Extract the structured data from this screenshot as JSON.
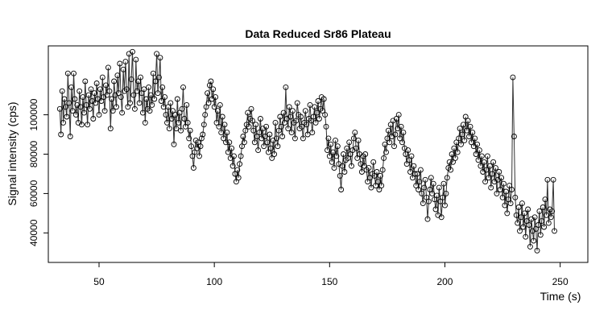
{
  "chart_data": {
    "type": "line",
    "title": "Data Reduced Sr86 Plateau",
    "xlabel": "Time (s)",
    "ylabel": "Signal intensity (cps)",
    "xlim": [
      28,
      262
    ],
    "ylim": [
      25000,
      135000
    ],
    "xticks": [
      50,
      100,
      150,
      200,
      250
    ],
    "yticks": [
      40000,
      60000,
      80000,
      100000
    ],
    "xtick_labels": [
      "50",
      "100",
      "150",
      "200",
      "250"
    ],
    "ytick_labels": [
      "40000",
      "60000",
      "80000",
      "100000"
    ],
    "grid": false,
    "legend": "none",
    "series": [
      {
        "style": "line-with-open-circles",
        "color": "#000000",
        "x_start": 33,
        "x_step": 0.5,
        "values": [
          103000,
          90000,
          112000,
          96000,
          108000,
          104000,
          99000,
          121000,
          106000,
          89000,
          114000,
          102000,
          121000,
          108000,
          100000,
          105000,
          96000,
          112000,
          104000,
          95000,
          109000,
          101000,
          117000,
          105000,
          95000,
          110000,
          103000,
          113000,
          107000,
          98000,
          111000,
          106000,
          116000,
          108000,
          100000,
          113000,
          107000,
          119000,
          109000,
          102000,
          115000,
          110000,
          124000,
          112000,
          93000,
          108000,
          102000,
          117000,
          110000,
          104000,
          120000,
          111000,
          126000,
          109000,
          101000,
          123000,
          112000,
          127000,
          113000,
          104000,
          131000,
          106000,
          118000,
          132000,
          110000,
          103000,
          128000,
          112000,
          117000,
          106000,
          119000,
          111000,
          101000,
          113000,
          96000,
          108000,
          103000,
          114000,
          102000,
          110000,
          105000,
          121000,
          108000,
          117000,
          131000,
          111000,
          119000,
          129000,
          107000,
          114000,
          104000,
          109000,
          100000,
          96000,
          104000,
          93000,
          106000,
          98000,
          102000,
          85000,
          100000,
          93000,
          108000,
          96000,
          101000,
          92000,
          103000,
          114000,
          98000,
          94000,
          105000,
          96000,
          88000,
          92000,
          84000,
          79000,
          73000,
          81000,
          87000,
          83000,
          86000,
          79000,
          84000,
          88000,
          90000,
          95000,
          100000,
          104000,
          111000,
          106000,
          115000,
          117000,
          108000,
          113000,
          104000,
          109000,
          96000,
          102000,
          94000,
          105000,
          91000,
          99000,
          88000,
          95000,
          86000,
          91000,
          81000,
          86000,
          78000,
          83000,
          74000,
          79000,
          70000,
          66000,
          72000,
          68000,
          75000,
          79000,
          84000,
          89000,
          86000,
          92000,
          95000,
          101000,
          94000,
          98000,
          103000,
          97000,
          92000,
          86000,
          95000,
          89000,
          82000,
          91000,
          98000,
          88000,
          93000,
          84000,
          89000,
          94000,
          86000,
          81000,
          90000,
          83000,
          78000,
          87000,
          80000,
          96000,
          88000,
          84000,
          92000,
          99000,
          94000,
          89000,
          101000,
          96000,
          114000,
          98000,
          93000,
          104000,
          99000,
          91000,
          102000,
          96000,
          88000,
          97000,
          106000,
          100000,
          93000,
          99000,
          94000,
          88000,
          96000,
          102000,
          95000,
          90000,
          98000,
          105000,
          97000,
          91000,
          99000,
          104000,
          96000,
          101000,
          107000,
          98000,
          103000,
          109000,
          102000,
          108000,
          100000,
          94000,
          82000,
          88000,
          79000,
          85000,
          76000,
          81000,
          73000,
          87000,
          79000,
          84000,
          75000,
          69000,
          62000,
          74000,
          80000,
          71000,
          77000,
          83000,
          78000,
          86000,
          80000,
          74000,
          82000,
          88000,
          91000,
          83000,
          78000,
          87000,
          80000,
          75000,
          71000,
          79000,
          74000,
          80000,
          72000,
          66000,
          73000,
          68000,
          63000,
          70000,
          76000,
          69000,
          64000,
          71000,
          66000,
          62000,
          69000,
          64000,
          72000,
          78000,
          85000,
          81000,
          88000,
          92000,
          86000,
          95000,
          89000,
          97000,
          84000,
          90000,
          98000,
          93000,
          100000,
          88000,
          94000,
          86000,
          91000,
          83000,
          80000,
          75000,
          82000,
          77000,
          71000,
          79000,
          68000,
          74000,
          70000,
          64000,
          70000,
          62000,
          66000,
          72000,
          60000,
          55000,
          63000,
          67000,
          58000,
          47000,
          56000,
          62000,
          68000,
          60000,
          65000,
          57000,
          52000,
          59000,
          49000,
          63000,
          56000,
          48000,
          58000,
          65000,
          54000,
          60000,
          68000,
          73000,
          76000,
          72000,
          80000,
          76000,
          83000,
          78000,
          86000,
          81000,
          88000,
          93000,
          85000,
          90000,
          95000,
          87000,
          99000,
          92000,
          97000,
          89000,
          94000,
          86000,
          91000,
          84000,
          88000,
          80000,
          85000,
          77000,
          82000,
          74000,
          79000,
          71000,
          76000,
          66000,
          72000,
          79000,
          68000,
          74000,
          63000,
          70000,
          76000,
          66000,
          73000,
          60000,
          67000,
          71000,
          62000,
          68000,
          58000,
          65000,
          54000,
          61000,
          50000,
          57000,
          64000,
          55000,
          62000,
          119000,
          89000,
          58000,
          49000,
          45000,
          53000,
          41000,
          48000,
          55000,
          43000,
          50000,
          38000,
          46000,
          52000,
          44000,
          33000,
          47000,
          41000,
          36000,
          48000,
          42000,
          31000,
          44000,
          51000,
          39000,
          46000,
          53000,
          43000,
          57000,
          49000,
          67000,
          45000,
          52000,
          48000,
          51000,
          67000,
          41000
        ]
      }
    ]
  }
}
